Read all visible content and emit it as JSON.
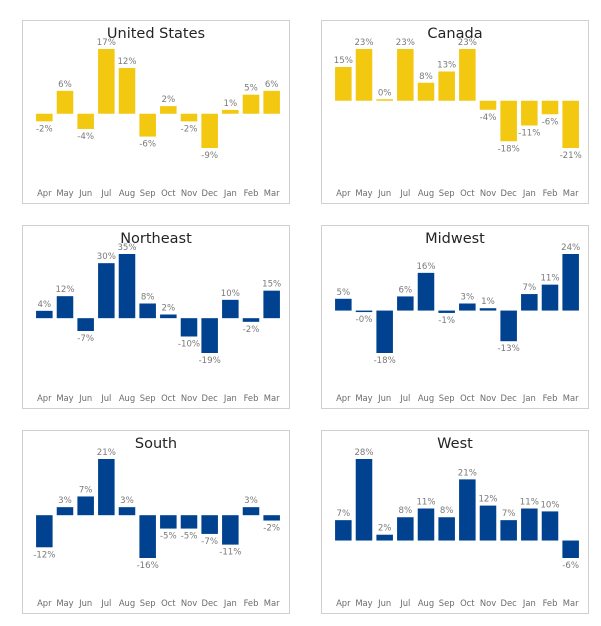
{
  "colors": {
    "yellow": "#F2C811",
    "blue": "#00428F"
  },
  "chart_data": [
    {
      "type": "bar",
      "title": "United States",
      "color": "#F2C811",
      "categories": [
        "Apr",
        "May",
        "Jun",
        "Jul",
        "Aug",
        "Sep",
        "Oct",
        "Nov",
        "Dec",
        "Jan",
        "Feb",
        "Mar"
      ],
      "values": [
        -2,
        6,
        -4,
        17,
        12,
        -6,
        2,
        -2,
        -9,
        1,
        5,
        6
      ],
      "labels": [
        "-2%",
        "6%",
        "-4%",
        "17%",
        "12%",
        "-6%",
        "2%",
        "-2%",
        "-9%",
        "1%",
        "5%",
        "6%"
      ],
      "xlabel": "",
      "ylabel": "",
      "unit": "%",
      "grid": false,
      "legend": "none"
    },
    {
      "type": "bar",
      "title": "Canada",
      "color": "#F2C811",
      "categories": [
        "Apr",
        "May",
        "Jun",
        "Jul",
        "Aug",
        "Sep",
        "Oct",
        "Nov",
        "Dec",
        "Jan",
        "Feb",
        "Mar"
      ],
      "values": [
        15,
        23,
        0.3,
        23,
        8,
        13,
        23,
        -4,
        -18,
        -11,
        -6,
        -21
      ],
      "labels": [
        "15%",
        "23%",
        "0%",
        "23%",
        "8%",
        "13%",
        "23%",
        "-4%",
        "-18%",
        "-11%",
        "-6%",
        "-21%"
      ],
      "xlabel": "",
      "ylabel": "",
      "unit": "%",
      "grid": false,
      "legend": "none"
    },
    {
      "type": "bar",
      "title": "Northeast",
      "color": "#00428F",
      "categories": [
        "Apr",
        "May",
        "Jun",
        "Jul",
        "Aug",
        "Sep",
        "Oct",
        "Nov",
        "Dec",
        "Jan",
        "Feb",
        "Mar"
      ],
      "values": [
        4,
        12,
        -7,
        30,
        35,
        8,
        2,
        -10,
        -19,
        10,
        -2,
        15
      ],
      "labels": [
        "4%",
        "12%",
        "-7%",
        "30%",
        "35%",
        "8%",
        "2%",
        "-10%",
        "-19%",
        "10%",
        "-2%",
        "15%"
      ],
      "xlabel": "",
      "ylabel": "",
      "unit": "%",
      "grid": false,
      "legend": "none"
    },
    {
      "type": "bar",
      "title": "Midwest",
      "color": "#00428F",
      "categories": [
        "Apr",
        "May",
        "Jun",
        "Jul",
        "Aug",
        "Sep",
        "Oct",
        "Nov",
        "Dec",
        "Jan",
        "Feb",
        "Mar"
      ],
      "values": [
        5,
        -0.3,
        -18,
        6,
        16,
        -1,
        3,
        1,
        -13,
        7,
        11,
        24
      ],
      "labels": [
        "5%",
        "-0%",
        "-18%",
        "6%",
        "16%",
        "-1%",
        "3%",
        "1%",
        "-13%",
        "7%",
        "11%",
        "24%"
      ],
      "xlabel": "",
      "ylabel": "",
      "unit": "%",
      "grid": false,
      "legend": "none"
    },
    {
      "type": "bar",
      "title": "South",
      "color": "#00428F",
      "categories": [
        "Apr",
        "May",
        "Jun",
        "Jul",
        "Aug",
        "Sep",
        "Oct",
        "Nov",
        "Dec",
        "Jan",
        "Feb",
        "Mar"
      ],
      "values": [
        -12,
        3,
        7,
        21,
        3,
        -16,
        -5,
        -5,
        -7,
        -11,
        3,
        -2
      ],
      "labels": [
        "-12%",
        "3%",
        "7%",
        "21%",
        "3%",
        "-16%",
        "-5%",
        "-5%",
        "-7%",
        "-11%",
        "3%",
        "-2%"
      ],
      "xlabel": "",
      "ylabel": "",
      "unit": "%",
      "grid": false,
      "legend": "none"
    },
    {
      "type": "bar",
      "title": "West",
      "color": "#00428F",
      "categories": [
        "Apr",
        "May",
        "Jun",
        "Jul",
        "Aug",
        "Sep",
        "Oct",
        "Nov",
        "Dec",
        "Jan",
        "Feb",
        "Mar"
      ],
      "values": [
        7,
        28,
        2,
        8,
        11,
        8,
        21,
        12,
        7,
        11,
        10,
        -6
      ],
      "labels": [
        "7%",
        "28%",
        "2%",
        "8%",
        "11%",
        "8%",
        "21%",
        "12%",
        "7%",
        "11%",
        "10%",
        "-6%"
      ],
      "xlabel": "",
      "ylabel": "",
      "unit": "%",
      "grid": false,
      "legend": "none"
    }
  ]
}
